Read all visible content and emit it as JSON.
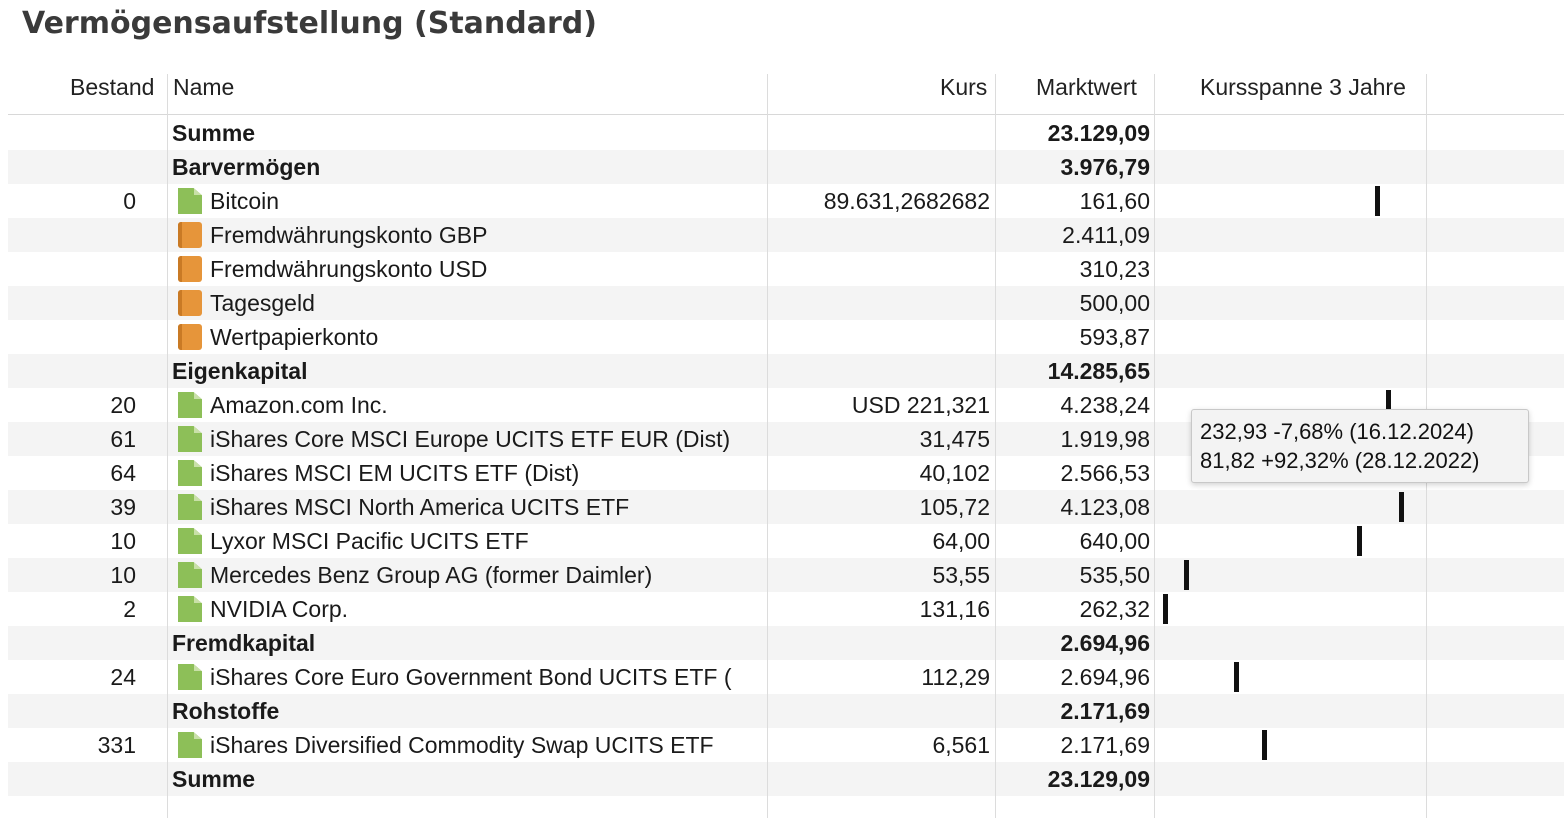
{
  "title": "Vermögensaufstellung (Standard)",
  "columns": {
    "bestand": "Bestand",
    "name": "Name",
    "kurs": "Kurs",
    "marktwert": "Marktwert",
    "spanne": "Kursspanne 3 Jahre"
  },
  "rows": [
    {
      "type": "group",
      "bestand": "",
      "name": "Summe",
      "kurs": "",
      "marktwert": "23.129,09",
      "alt": false
    },
    {
      "type": "group",
      "bestand": "",
      "name": "Barvermögen",
      "kurs": "",
      "marktwert": "3.976,79",
      "alt": true
    },
    {
      "type": "security",
      "icon": "document-icon",
      "bestand": "0",
      "name": "Bitcoin",
      "kurs": "89.631,2682682",
      "marktwert": "161,60",
      "alt": false,
      "range": 0.84
    },
    {
      "type": "account",
      "icon": "folder-icon",
      "bestand": "",
      "name": "Fremdwährungskonto GBP",
      "kurs": "",
      "marktwert": "2.411,09",
      "alt": true
    },
    {
      "type": "account",
      "icon": "folder-icon",
      "bestand": "",
      "name": "Fremdwährungskonto USD",
      "kurs": "",
      "marktwert": "310,23",
      "alt": false
    },
    {
      "type": "account",
      "icon": "folder-icon",
      "bestand": "",
      "name": "Tagesgeld",
      "kurs": "",
      "marktwert": "500,00",
      "alt": true
    },
    {
      "type": "account",
      "icon": "folder-icon",
      "bestand": "",
      "name": "Wertpapierkonto",
      "kurs": "",
      "marktwert": "593,87",
      "alt": false
    },
    {
      "type": "group",
      "bestand": "",
      "name": "Eigenkapital",
      "kurs": "",
      "marktwert": "14.285,65",
      "alt": true
    },
    {
      "type": "security",
      "icon": "document-icon",
      "bestand": "20",
      "name": "Amazon.com Inc.",
      "kurs": "USD 221,321",
      "marktwert": "4.238,24",
      "alt": false,
      "range": 0.88
    },
    {
      "type": "security",
      "icon": "document-icon",
      "bestand": "61",
      "name": "iShares Core MSCI Europe UCITS ETF EUR (Dist)",
      "kurs": "31,475",
      "marktwert": "1.919,98",
      "alt": true
    },
    {
      "type": "security",
      "icon": "document-icon",
      "bestand": "64",
      "name": "iShares MSCI EM UCITS ETF (Dist)",
      "kurs": "40,102",
      "marktwert": "2.566,53",
      "alt": false
    },
    {
      "type": "security",
      "icon": "document-icon",
      "bestand": "39",
      "name": "iShares MSCI North America UCITS ETF",
      "kurs": "105,72",
      "marktwert": "4.123,08",
      "alt": true,
      "range": 0.93
    },
    {
      "type": "security",
      "icon": "document-icon",
      "bestand": "10",
      "name": "Lyxor MSCI Pacific UCITS ETF",
      "kurs": "64,00",
      "marktwert": "640,00",
      "alt": false,
      "range": 0.77
    },
    {
      "type": "security",
      "icon": "document-icon",
      "bestand": "10",
      "name": "Mercedes Benz Group AG (former Daimler)",
      "kurs": "53,55",
      "marktwert": "535,50",
      "alt": true,
      "range": 0.11
    },
    {
      "type": "security",
      "icon": "document-icon",
      "bestand": "2",
      "name": "NVIDIA Corp.",
      "kurs": "131,16",
      "marktwert": "262,32",
      "alt": false,
      "range": 0.03
    },
    {
      "type": "group",
      "bestand": "",
      "name": "Fremdkapital",
      "kurs": "",
      "marktwert": "2.694,96",
      "alt": true
    },
    {
      "type": "security",
      "icon": "document-icon",
      "bestand": "24",
      "name": "iShares Core Euro Government Bond UCITS ETF (",
      "kurs": "112,29",
      "marktwert": "2.694,96",
      "alt": false,
      "range": 0.3
    },
    {
      "type": "group",
      "bestand": "",
      "name": "Rohstoffe",
      "kurs": "",
      "marktwert": "2.171,69",
      "alt": true
    },
    {
      "type": "security",
      "icon": "document-icon",
      "bestand": "331",
      "name": "iShares Diversified Commodity Swap UCITS ETF",
      "kurs": "6,561",
      "marktwert": "2.171,69",
      "alt": false,
      "range": 0.41
    },
    {
      "type": "group",
      "bestand": "",
      "name": "Summe",
      "kurs": "",
      "marktwert": "23.129,09",
      "alt": true
    }
  ],
  "tooltip": {
    "line1": "232,93 -7,68% (16.12.2024)",
    "line2": "81,82 +92,32% (28.12.2022)"
  }
}
